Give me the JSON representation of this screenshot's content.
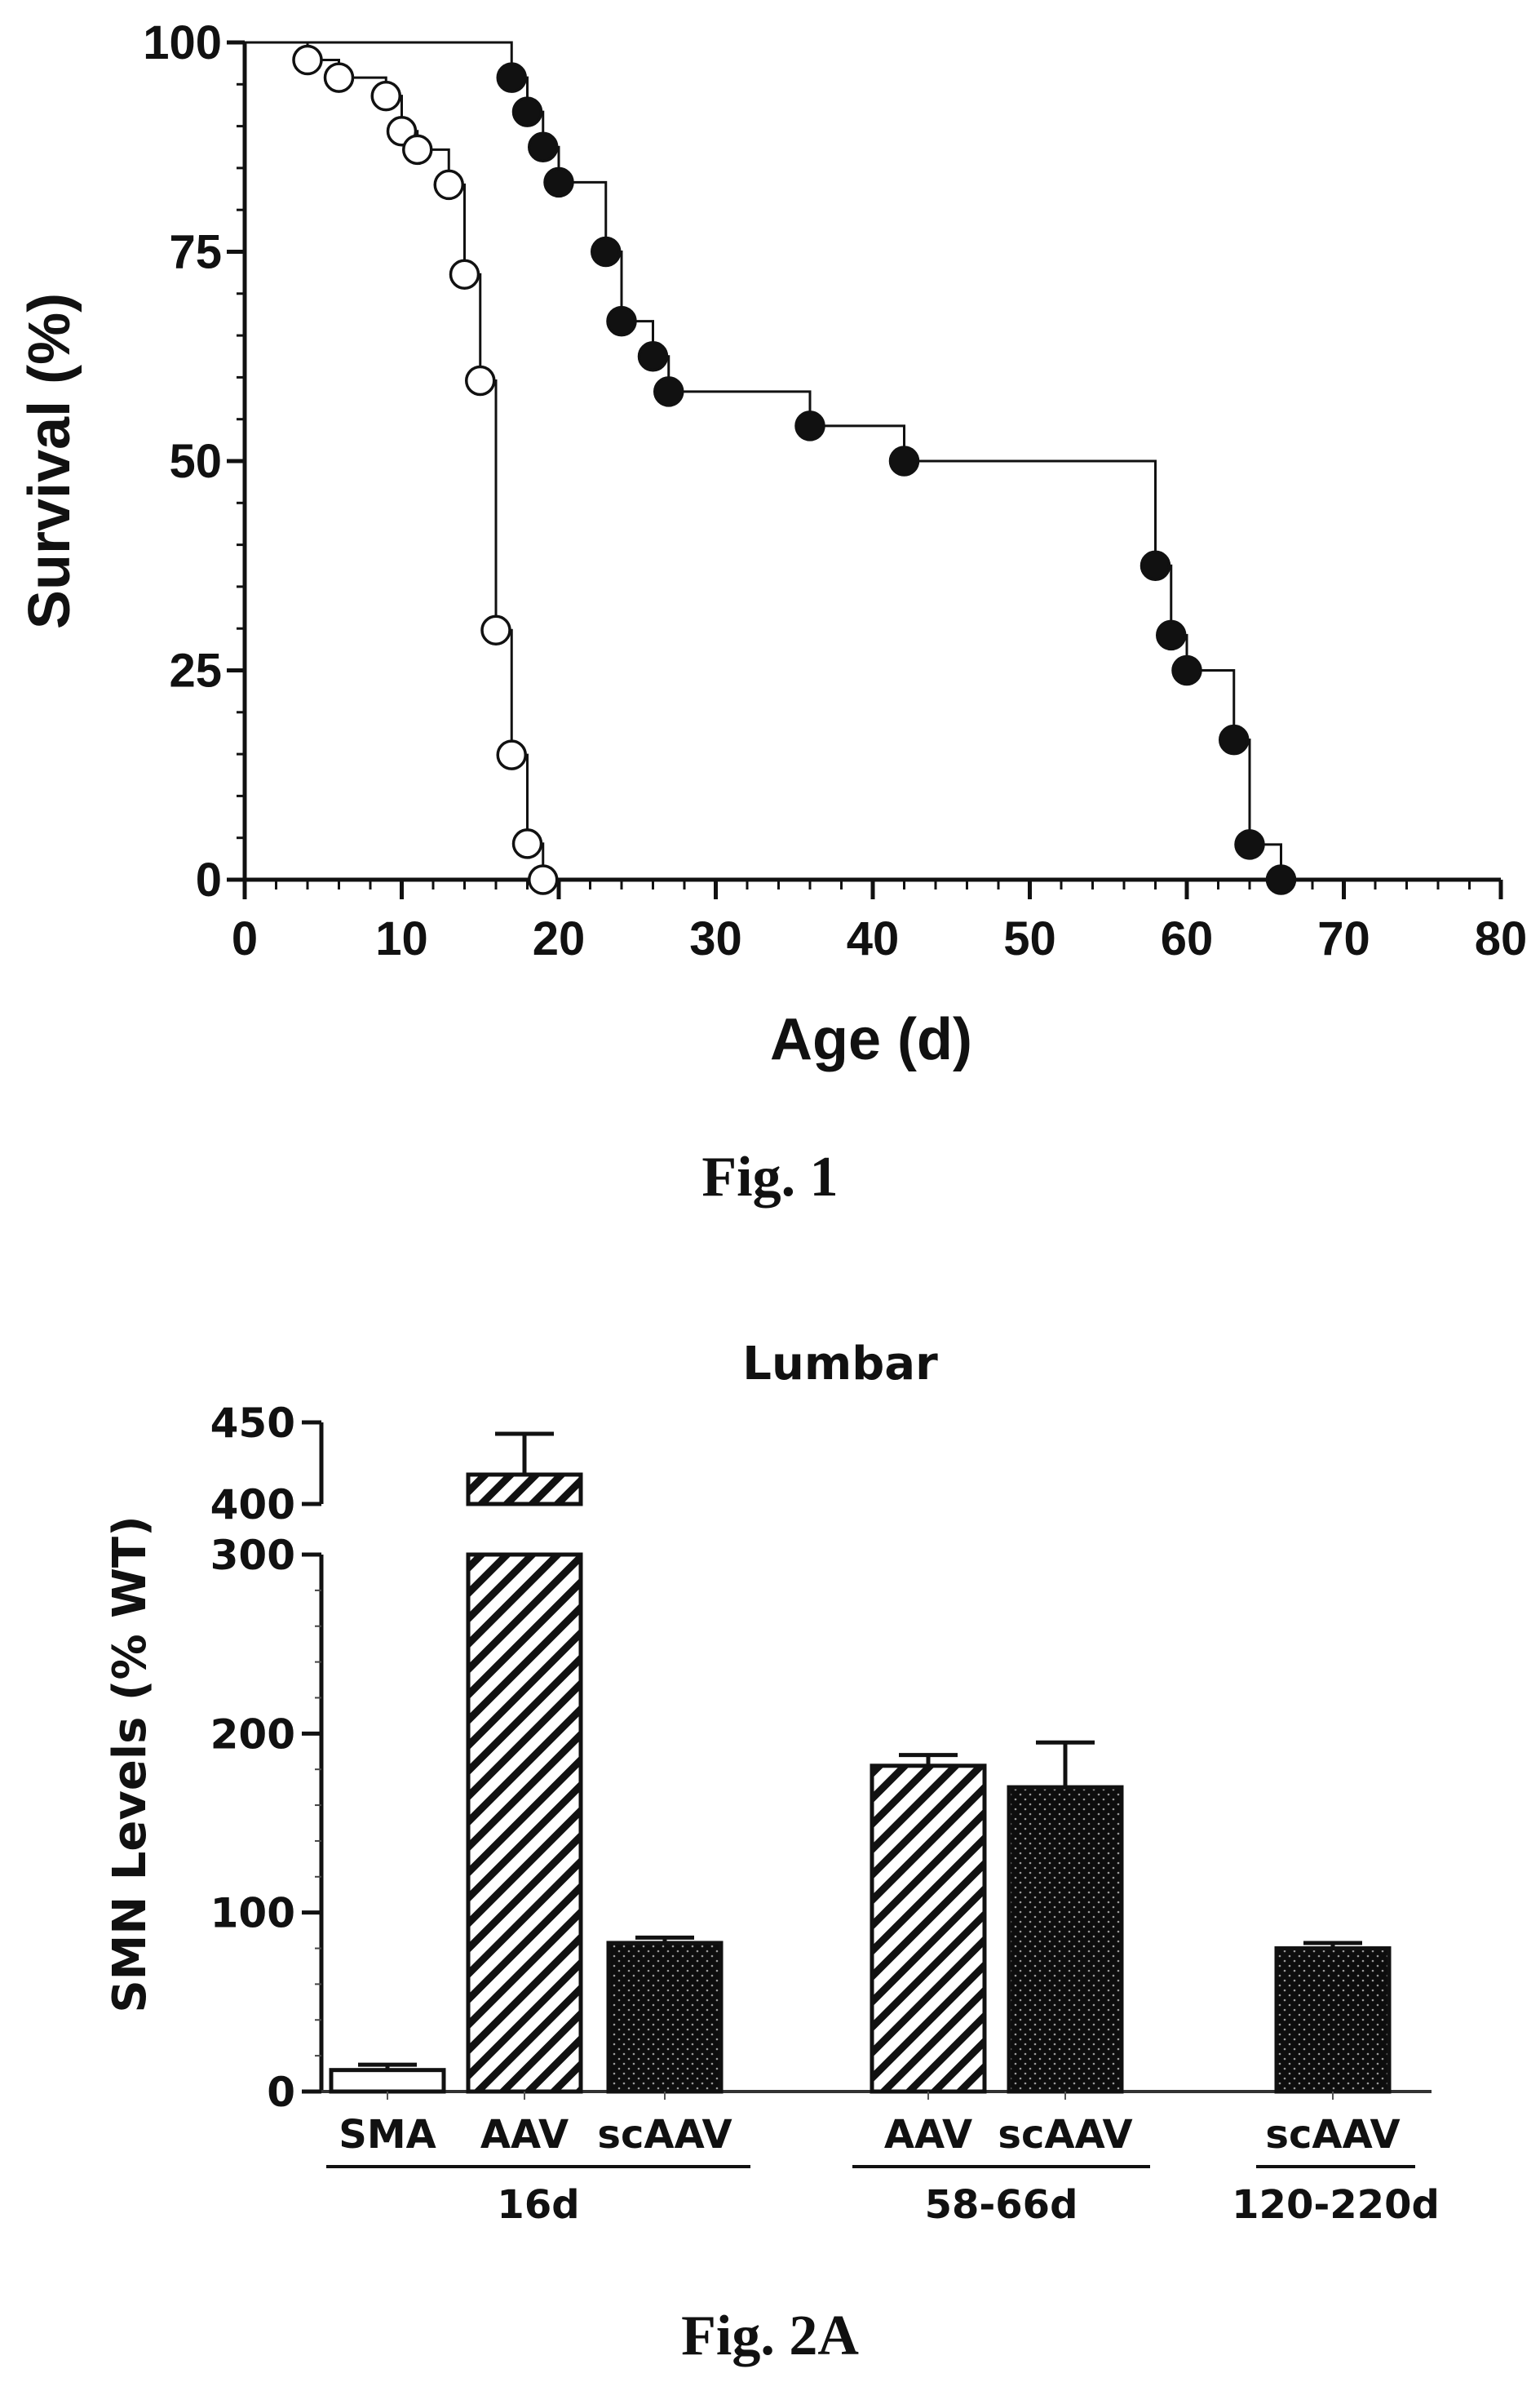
{
  "figures": {
    "fig1_caption": "Fig. 1",
    "fig2a_caption": "Fig. 2A"
  },
  "chart_data": [
    {
      "type": "line",
      "subtype": "kaplan-meier survival step plot",
      "title": "",
      "xlabel": "Age (d)",
      "ylabel": "Survival (%)",
      "xlim": [
        0,
        80
      ],
      "ylim": [
        0,
        100
      ],
      "x_ticks": [
        0,
        10,
        20,
        30,
        40,
        50,
        60,
        70,
        80
      ],
      "y_ticks": [
        0,
        25,
        50,
        75,
        100
      ],
      "grid": false,
      "legend": "none",
      "series": [
        {
          "marker": "open-circle",
          "points": [
            {
              "x": 4,
              "y": 97.9
            },
            {
              "x": 6,
              "y": 95.8
            },
            {
              "x": 9,
              "y": 93.6
            },
            {
              "x": 10,
              "y": 89.4
            },
            {
              "x": 11,
              "y": 87.2
            },
            {
              "x": 13,
              "y": 83
            },
            {
              "x": 14,
              "y": 72.3
            },
            {
              "x": 15,
              "y": 59.6
            },
            {
              "x": 16,
              "y": 29.8
            },
            {
              "x": 17,
              "y": 14.9
            },
            {
              "x": 18,
              "y": 4.3
            },
            {
              "x": 19,
              "y": 0
            }
          ]
        },
        {
          "marker": "filled-circle",
          "points": [
            {
              "x": 17,
              "y": 95.8
            },
            {
              "x": 18,
              "y": 91.7
            },
            {
              "x": 19,
              "y": 87.5
            },
            {
              "x": 20,
              "y": 83.3
            },
            {
              "x": 23,
              "y": 75
            },
            {
              "x": 24,
              "y": 66.7
            },
            {
              "x": 26,
              "y": 62.5
            },
            {
              "x": 27,
              "y": 58.3
            },
            {
              "x": 36,
              "y": 54.2
            },
            {
              "x": 42,
              "y": 50
            },
            {
              "x": 58,
              "y": 37.5
            },
            {
              "x": 59,
              "y": 29.2
            },
            {
              "x": 60,
              "y": 25
            },
            {
              "x": 63,
              "y": 16.7
            },
            {
              "x": 64,
              "y": 4.2
            },
            {
              "x": 66,
              "y": 0
            }
          ]
        }
      ]
    },
    {
      "type": "bar",
      "title": "Lumbar",
      "xlabel": "",
      "ylabel": "SMN Levels (% WT)",
      "y_axis": "broken",
      "ylim_lower": [
        0,
        300
      ],
      "ylim_upper": [
        400,
        450
      ],
      "lower_ticks": [
        0,
        100,
        200,
        300
      ],
      "upper_ticks": [
        400,
        450
      ],
      "grid": false,
      "legend": "none",
      "bars": [
        {
          "label": "SMA",
          "group": "16d",
          "value": 12,
          "error": 3,
          "fill": "white"
        },
        {
          "label": "AAV",
          "group": "16d",
          "value": 418,
          "error": 25,
          "fill": "diagonal-hatch"
        },
        {
          "label": "scAAV",
          "group": "16d",
          "value": 83,
          "error": 3,
          "fill": "black-dotted"
        },
        {
          "label": "AAV",
          "group": "58-66d",
          "value": 182,
          "error": 6,
          "fill": "diagonal-hatch"
        },
        {
          "label": "scAAV",
          "group": "58-66d",
          "value": 170,
          "error": 25,
          "fill": "black-dotted"
        },
        {
          "label": "scAAV",
          "group": "120-220d",
          "value": 80,
          "error": 3,
          "fill": "black-dotted"
        }
      ],
      "groups": [
        "16d",
        "58-66d",
        "120-220d"
      ]
    }
  ]
}
